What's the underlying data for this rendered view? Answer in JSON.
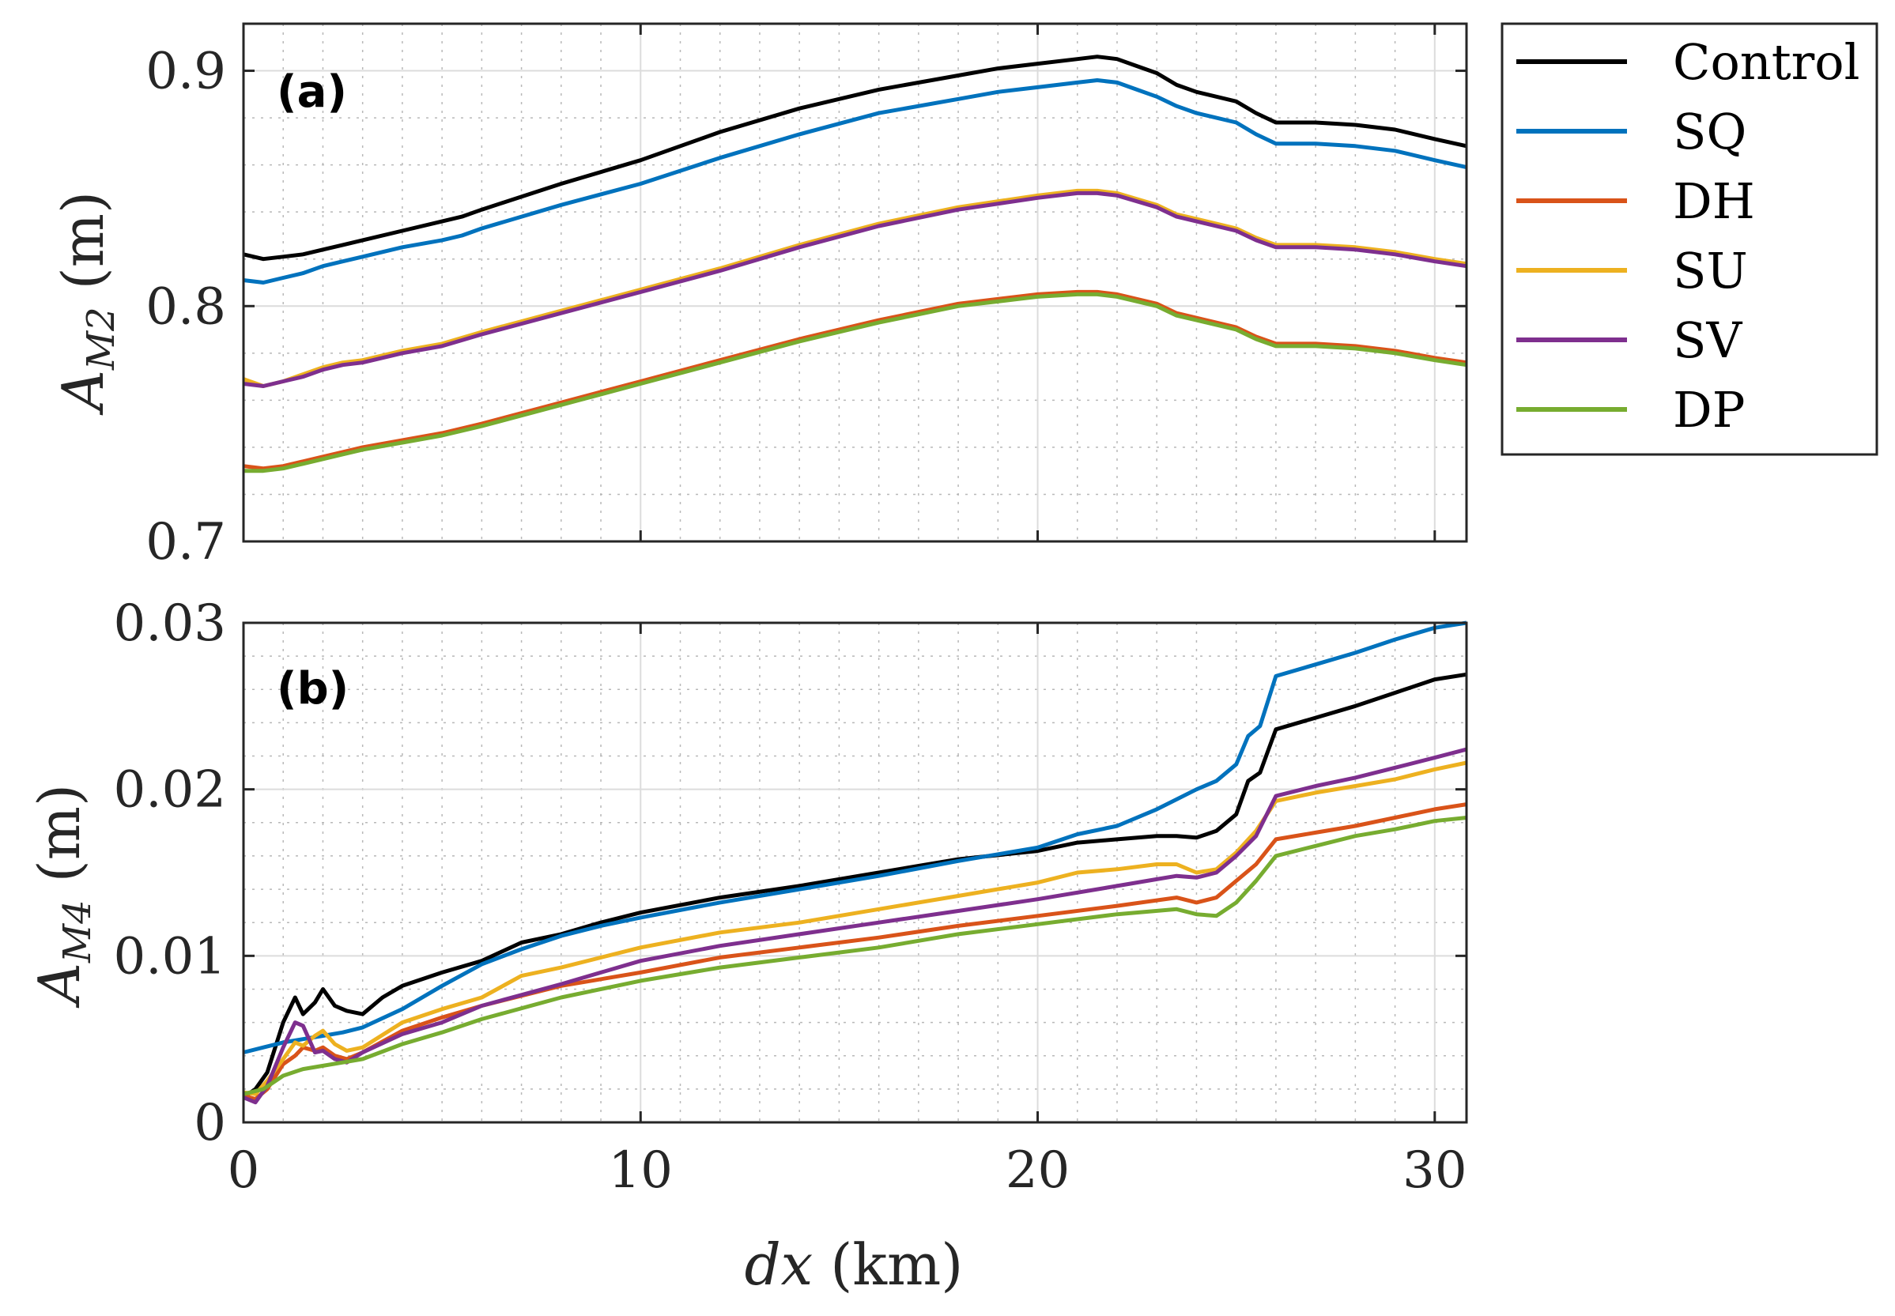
{
  "chart_data": [
    {
      "type": "line",
      "panel_label": "(a)",
      "ylabel_base": "A",
      "ylabel_sub": "M2",
      "ylabel_unit": "(m)",
      "xlim": [
        0,
        30.8
      ],
      "ylim": [
        0.7,
        0.92
      ],
      "xticks": [
        0,
        10,
        20,
        30
      ],
      "yticks": [
        0.7,
        0.8,
        0.9
      ],
      "ytick_labels": [
        "0.7",
        "0.8",
        "0.9"
      ],
      "grid": true,
      "minor_grid": true,
      "series": [
        {
          "name": "Control",
          "color": "#000000",
          "x": [
            0,
            0.5,
            1,
            1.5,
            2,
            2.5,
            3,
            4,
            5,
            5.5,
            6,
            8,
            10,
            12,
            14,
            16,
            18,
            19,
            20,
            21,
            21.5,
            22,
            22.5,
            23,
            23.5,
            24,
            25,
            25.5,
            26,
            27,
            28,
            29,
            30,
            30.8
          ],
          "y": [
            0.822,
            0.82,
            0.821,
            0.822,
            0.824,
            0.826,
            0.828,
            0.832,
            0.836,
            0.838,
            0.841,
            0.852,
            0.862,
            0.874,
            0.884,
            0.892,
            0.898,
            0.901,
            0.903,
            0.905,
            0.906,
            0.905,
            0.902,
            0.899,
            0.894,
            0.891,
            0.887,
            0.882,
            0.878,
            0.878,
            0.877,
            0.875,
            0.871,
            0.868
          ]
        },
        {
          "name": "SQ",
          "color": "#0072BD",
          "x": [
            0,
            0.5,
            1,
            1.5,
            2,
            2.5,
            3,
            4,
            5,
            5.5,
            6,
            8,
            10,
            12,
            14,
            16,
            18,
            19,
            20,
            21,
            21.5,
            22,
            22.5,
            23,
            23.5,
            24,
            25,
            25.5,
            26,
            27,
            28,
            29,
            30,
            30.8
          ],
          "y": [
            0.811,
            0.81,
            0.812,
            0.814,
            0.817,
            0.819,
            0.821,
            0.825,
            0.828,
            0.83,
            0.833,
            0.843,
            0.852,
            0.863,
            0.873,
            0.882,
            0.888,
            0.891,
            0.893,
            0.895,
            0.896,
            0.895,
            0.892,
            0.889,
            0.885,
            0.882,
            0.878,
            0.873,
            0.869,
            0.869,
            0.868,
            0.866,
            0.862,
            0.859
          ]
        },
        {
          "name": "DH",
          "color": "#D95319",
          "x": [
            0,
            0.5,
            1,
            1.5,
            2,
            2.5,
            3,
            4,
            5,
            6,
            8,
            10,
            12,
            14,
            16,
            18,
            20,
            21,
            21.5,
            22,
            23,
            23.5,
            24,
            25,
            25.5,
            26,
            27,
            28,
            29,
            30,
            30.8
          ],
          "y": [
            0.732,
            0.731,
            0.732,
            0.734,
            0.736,
            0.738,
            0.74,
            0.743,
            0.746,
            0.75,
            0.759,
            0.768,
            0.777,
            0.786,
            0.794,
            0.801,
            0.805,
            0.806,
            0.806,
            0.805,
            0.801,
            0.797,
            0.795,
            0.791,
            0.787,
            0.784,
            0.784,
            0.783,
            0.781,
            0.778,
            0.776
          ]
        },
        {
          "name": "SU",
          "color": "#EDB120",
          "x": [
            0,
            0.5,
            1,
            1.5,
            2,
            2.5,
            3,
            4,
            5,
            6,
            8,
            10,
            12,
            14,
            16,
            18,
            20,
            21,
            21.5,
            22,
            23,
            23.5,
            24,
            25,
            25.5,
            26,
            27,
            28,
            29,
            30,
            30.8
          ],
          "y": [
            0.769,
            0.766,
            0.768,
            0.771,
            0.774,
            0.776,
            0.777,
            0.781,
            0.784,
            0.789,
            0.798,
            0.807,
            0.816,
            0.826,
            0.835,
            0.842,
            0.847,
            0.849,
            0.849,
            0.848,
            0.843,
            0.839,
            0.837,
            0.833,
            0.829,
            0.826,
            0.826,
            0.825,
            0.823,
            0.82,
            0.818
          ]
        },
        {
          "name": "SV",
          "color": "#7E2F8E",
          "x": [
            0,
            0.5,
            1,
            1.5,
            2,
            2.5,
            3,
            4,
            5,
            6,
            8,
            10,
            12,
            14,
            16,
            18,
            20,
            21,
            21.5,
            22,
            23,
            23.5,
            24,
            25,
            25.5,
            26,
            27,
            28,
            29,
            30,
            30.8
          ],
          "y": [
            0.767,
            0.766,
            0.768,
            0.77,
            0.773,
            0.775,
            0.776,
            0.78,
            0.783,
            0.788,
            0.797,
            0.806,
            0.815,
            0.825,
            0.834,
            0.841,
            0.846,
            0.848,
            0.848,
            0.847,
            0.842,
            0.838,
            0.836,
            0.832,
            0.828,
            0.825,
            0.825,
            0.824,
            0.822,
            0.819,
            0.817
          ]
        },
        {
          "name": "DP",
          "color": "#77AC30",
          "x": [
            0,
            0.5,
            1,
            1.5,
            2,
            2.5,
            3,
            4,
            5,
            6,
            8,
            10,
            12,
            14,
            16,
            18,
            20,
            21,
            21.5,
            22,
            23,
            23.5,
            24,
            25,
            25.5,
            26,
            27,
            28,
            29,
            30,
            30.8
          ],
          "y": [
            0.73,
            0.73,
            0.731,
            0.733,
            0.735,
            0.737,
            0.739,
            0.742,
            0.745,
            0.749,
            0.758,
            0.767,
            0.776,
            0.785,
            0.793,
            0.8,
            0.804,
            0.805,
            0.805,
            0.804,
            0.8,
            0.796,
            0.794,
            0.79,
            0.786,
            0.783,
            0.783,
            0.782,
            0.78,
            0.777,
            0.775
          ]
        }
      ]
    },
    {
      "type": "line",
      "panel_label": "(b)",
      "ylabel_base": "A",
      "ylabel_sub": "M4",
      "ylabel_unit": "(m)",
      "xlabel_var": "dx",
      "xlabel_unit": "(km)",
      "xlim": [
        0,
        30.8
      ],
      "ylim": [
        0,
        0.03
      ],
      "xticks": [
        0,
        10,
        20,
        30
      ],
      "yticks": [
        0,
        0.01,
        0.02,
        0.03
      ],
      "ytick_labels": [
        "0",
        "0.01",
        "0.02",
        "0.03"
      ],
      "grid": true,
      "minor_grid": true,
      "series": [
        {
          "name": "Control",
          "color": "#000000",
          "x": [
            0,
            0.3,
            0.6,
            1,
            1.3,
            1.5,
            1.8,
            2,
            2.3,
            2.6,
            3,
            3.5,
            4,
            5,
            6,
            7,
            8,
            9,
            10,
            12,
            14,
            16,
            18,
            20,
            21,
            22,
            23,
            23.5,
            24,
            24.5,
            25,
            25.3,
            25.6,
            26,
            27,
            28,
            29,
            30,
            30.8
          ],
          "y": [
            0.0015,
            0.002,
            0.003,
            0.006,
            0.0075,
            0.0065,
            0.0072,
            0.008,
            0.007,
            0.0067,
            0.0065,
            0.0075,
            0.0082,
            0.009,
            0.0097,
            0.0108,
            0.0113,
            0.012,
            0.0126,
            0.0135,
            0.0142,
            0.015,
            0.0158,
            0.0163,
            0.0168,
            0.017,
            0.0172,
            0.0172,
            0.0171,
            0.0175,
            0.0185,
            0.0205,
            0.021,
            0.0236,
            0.0243,
            0.025,
            0.0258,
            0.0266,
            0.0269
          ]
        },
        {
          "name": "SQ",
          "color": "#0072BD",
          "x": [
            0,
            0.5,
            1,
            1.5,
            2,
            2.5,
            3,
            4,
            5,
            6,
            7,
            8,
            9,
            10,
            12,
            14,
            16,
            18,
            20,
            21,
            22,
            23,
            24,
            24.5,
            25,
            25.3,
            25.6,
            26,
            27,
            28,
            29,
            30,
            30.8
          ],
          "y": [
            0.0042,
            0.0045,
            0.0048,
            0.005,
            0.0052,
            0.0054,
            0.0057,
            0.0068,
            0.0082,
            0.0095,
            0.0104,
            0.0112,
            0.0118,
            0.0123,
            0.0132,
            0.014,
            0.0148,
            0.0157,
            0.0165,
            0.0173,
            0.0178,
            0.0188,
            0.02,
            0.0205,
            0.0215,
            0.0232,
            0.0238,
            0.0268,
            0.0275,
            0.0282,
            0.029,
            0.0297,
            0.03
          ]
        },
        {
          "name": "DH",
          "color": "#D95319",
          "x": [
            0,
            0.3,
            0.6,
            1,
            1.3,
            1.5,
            1.8,
            2,
            2.3,
            2.6,
            3,
            4,
            5,
            6,
            8,
            10,
            12,
            14,
            16,
            18,
            20,
            22,
            23.5,
            24,
            24.5,
            25,
            25.5,
            26,
            27,
            28,
            29,
            30,
            30.8
          ],
          "y": [
            0.0016,
            0.0014,
            0.002,
            0.0035,
            0.004,
            0.0045,
            0.0043,
            0.0045,
            0.004,
            0.0038,
            0.0042,
            0.0055,
            0.0063,
            0.007,
            0.0082,
            0.009,
            0.0099,
            0.0105,
            0.0111,
            0.0118,
            0.0124,
            0.013,
            0.0135,
            0.0132,
            0.0135,
            0.0145,
            0.0155,
            0.017,
            0.0174,
            0.0178,
            0.0183,
            0.0188,
            0.0191
          ]
        },
        {
          "name": "SU",
          "color": "#EDB120",
          "x": [
            0,
            0.3,
            0.6,
            1,
            1.3,
            1.5,
            1.8,
            2,
            2.3,
            2.6,
            3,
            4,
            5,
            6,
            7,
            8,
            10,
            12,
            14,
            16,
            18,
            20,
            21,
            22,
            23,
            23.5,
            24,
            24.5,
            25,
            25.5,
            26,
            27,
            28,
            29,
            30,
            30.8
          ],
          "y": [
            0.0018,
            0.0017,
            0.0025,
            0.0038,
            0.0048,
            0.0046,
            0.0052,
            0.0055,
            0.0047,
            0.0043,
            0.0045,
            0.006,
            0.0068,
            0.0075,
            0.0088,
            0.0093,
            0.0105,
            0.0114,
            0.012,
            0.0128,
            0.0136,
            0.0144,
            0.015,
            0.0152,
            0.0155,
            0.0155,
            0.015,
            0.0152,
            0.0162,
            0.0175,
            0.0193,
            0.0198,
            0.0202,
            0.0206,
            0.0212,
            0.0216
          ]
        },
        {
          "name": "SV",
          "color": "#7E2F8E",
          "x": [
            0,
            0.3,
            0.6,
            1,
            1.3,
            1.5,
            1.8,
            2,
            2.3,
            2.6,
            3,
            4,
            5,
            6,
            8,
            10,
            12,
            14,
            16,
            18,
            20,
            22,
            23,
            23.5,
            24,
            24.5,
            25,
            25.5,
            26,
            27,
            28,
            29,
            30,
            30.8
          ],
          "y": [
            0.0015,
            0.0012,
            0.0022,
            0.0045,
            0.006,
            0.0058,
            0.0042,
            0.0043,
            0.0038,
            0.0036,
            0.0042,
            0.0053,
            0.006,
            0.007,
            0.0083,
            0.0097,
            0.0106,
            0.0113,
            0.012,
            0.0127,
            0.0134,
            0.0142,
            0.0146,
            0.0148,
            0.0147,
            0.015,
            0.016,
            0.0172,
            0.0196,
            0.0202,
            0.0207,
            0.0213,
            0.0219,
            0.0224
          ]
        },
        {
          "name": "DP",
          "color": "#77AC30",
          "x": [
            0,
            0.5,
            1,
            1.5,
            2,
            2.5,
            3,
            4,
            5,
            6,
            8,
            10,
            12,
            14,
            16,
            18,
            20,
            22,
            23.5,
            24,
            24.5,
            25,
            25.5,
            26,
            27,
            28,
            29,
            30,
            30.8
          ],
          "y": [
            0.0017,
            0.002,
            0.0028,
            0.0032,
            0.0034,
            0.0036,
            0.0038,
            0.0047,
            0.0054,
            0.0062,
            0.0075,
            0.0085,
            0.0093,
            0.0099,
            0.0105,
            0.0113,
            0.0119,
            0.0125,
            0.0128,
            0.0125,
            0.0124,
            0.0132,
            0.0145,
            0.016,
            0.0166,
            0.0172,
            0.0176,
            0.0181,
            0.0183
          ]
        }
      ]
    }
  ]
}
